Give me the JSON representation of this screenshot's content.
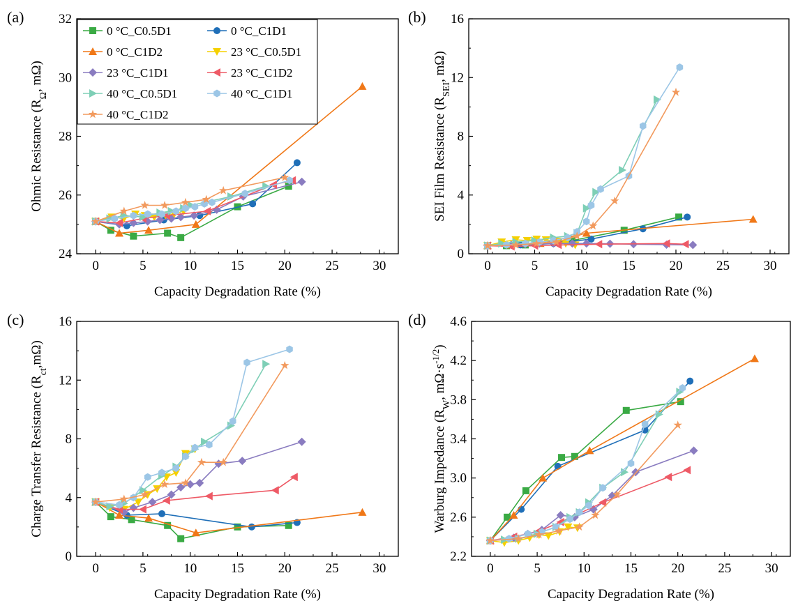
{
  "colors": {
    "0C_C0.5D1": "#3aaa44",
    "0C_C1D1": "#1f6fb8",
    "0C_C1D2": "#f07818",
    "23C_C0.5D1": "#f5d000",
    "23C_C1D1": "#8a7cc0",
    "23C_C1D2": "#ee5a66",
    "40C_C0.5D1": "#7ecfb6",
    "40C_C1D1": "#9cc6e6",
    "40C_C1D2": "#f29a5e"
  },
  "legend": [
    {
      "key": "0C_C0.5D1",
      "label": "0 °C_C0.5D1",
      "marker": "square"
    },
    {
      "key": "0C_C1D1",
      "label": "0 °C_C1D1",
      "marker": "circle"
    },
    {
      "key": "0C_C1D2",
      "label": "0 °C_C1D2",
      "marker": "tri-up"
    },
    {
      "key": "23C_C0.5D1",
      "label": "23 °C_C0.5D1",
      "marker": "tri-down"
    },
    {
      "key": "23C_C1D1",
      "label": "23 °C_C1D1",
      "marker": "diamond"
    },
    {
      "key": "23C_C1D2",
      "label": "23 °C_C1D2",
      "marker": "tri-left"
    },
    {
      "key": "40C_C0.5D1",
      "label": "40 °C_C0.5D1",
      "marker": "tri-right"
    },
    {
      "key": "40C_C1D1",
      "label": "40 °C_C1D1",
      "marker": "hexagon"
    },
    {
      "key": "40C_C1D2",
      "label": "40 °C_C1D2",
      "marker": "star"
    }
  ],
  "chart_data": [
    {
      "panel": "(a)",
      "type": "line",
      "xlabel": "Capacity Degradation Rate (%)",
      "ylabel": "Ohmic Resistance (R_Ω, mΩ)",
      "xlim": [
        -2,
        32
      ],
      "ylim": [
        24,
        32
      ],
      "xticks": [
        0,
        5,
        10,
        15,
        20,
        25,
        30
      ],
      "yticks": [
        24,
        26,
        28,
        30,
        32
      ],
      "legend_position": "top-left",
      "series": [
        {
          "key": "0C_C0.5D1",
          "x": [
            0,
            1.6,
            4,
            7.6,
            9,
            15,
            20.4
          ],
          "y": [
            25.1,
            24.8,
            24.6,
            24.7,
            24.55,
            25.6,
            26.3
          ]
        },
        {
          "key": "0C_C1D1",
          "x": [
            0,
            3.3,
            7.2,
            11,
            16.6,
            21.3
          ],
          "y": [
            25.1,
            24.95,
            25.15,
            25.3,
            25.7,
            27.1
          ]
        },
        {
          "key": "0C_C1D2",
          "x": [
            0,
            2.5,
            5.6,
            10.6,
            28.2
          ],
          "y": [
            25.1,
            24.7,
            24.8,
            25.0,
            29.7
          ]
        },
        {
          "key": "23C_C0.5D1",
          "x": [
            0,
            1.7,
            3,
            4.2,
            5.2,
            6.2,
            7.4,
            8.3,
            9.3
          ],
          "y": [
            25.1,
            25.25,
            25.2,
            25.35,
            25.3,
            25.25,
            25.3,
            25.35,
            25.45
          ]
        },
        {
          "key": "23C_C1D1",
          "x": [
            0,
            2.5,
            4,
            5.5,
            6.8,
            8,
            9,
            10.4,
            12.8,
            15.6,
            21.8
          ],
          "y": [
            25.1,
            25.0,
            25.05,
            25.1,
            25.15,
            25.2,
            25.25,
            25.3,
            25.5,
            25.95,
            26.45
          ]
        },
        {
          "key": "23C_C1D2",
          "x": [
            0,
            2.5,
            5,
            7.5,
            11.8,
            18.8,
            20.8
          ],
          "y": [
            25.1,
            25.05,
            25.2,
            25.3,
            25.45,
            26.35,
            26.5
          ]
        },
        {
          "key": "40C_C0.5D1",
          "x": [
            0,
            1.5,
            3,
            5,
            6.8,
            8,
            9.3,
            10.1,
            14.3,
            18
          ],
          "y": [
            25.1,
            25.2,
            25.3,
            25.25,
            25.4,
            25.45,
            25.55,
            25.65,
            25.95,
            26.3
          ]
        },
        {
          "key": "40C_C1D1",
          "x": [
            0,
            2,
            4,
            5.5,
            7,
            8.5,
            9.5,
            10.5,
            11.5,
            12.3,
            15.8,
            20.5
          ],
          "y": [
            25.1,
            25.2,
            25.3,
            25.35,
            25.35,
            25.45,
            25.55,
            25.6,
            25.7,
            25.75,
            26.05,
            26.5
          ]
        },
        {
          "key": "40C_C1D2",
          "x": [
            0,
            3,
            5.2,
            7.3,
            9.5,
            11.7,
            13.5,
            20
          ],
          "y": [
            25.1,
            25.45,
            25.65,
            25.65,
            25.75,
            25.85,
            26.15,
            26.6
          ]
        }
      ]
    },
    {
      "panel": "(b)",
      "type": "line",
      "xlabel": "Capacity Degradation Rate (%)",
      "ylabel": "SEI Film Resistance (R_SEI, mΩ)",
      "xlim": [
        -2,
        32
      ],
      "ylim": [
        0,
        16
      ],
      "xticks": [
        0,
        5,
        10,
        15,
        20,
        25,
        30
      ],
      "yticks": [
        0,
        4,
        8,
        12,
        16
      ],
      "series": [
        {
          "key": "0C_C0.5D1",
          "x": [
            0,
            2,
            4,
            7.5,
            9,
            14.5,
            20.3
          ],
          "y": [
            0.55,
            0.55,
            0.6,
            0.8,
            0.9,
            1.6,
            2.5
          ]
        },
        {
          "key": "0C_C1D1",
          "x": [
            0,
            3.5,
            7,
            11,
            16.5,
            21.2
          ],
          "y": [
            0.55,
            0.6,
            0.7,
            1.0,
            1.7,
            2.5
          ]
        },
        {
          "key": "0C_C1D2",
          "x": [
            0,
            2.5,
            5.6,
            10.5,
            28.2
          ],
          "y": [
            0.55,
            0.6,
            0.7,
            1.4,
            2.35
          ]
        },
        {
          "key": "23C_C0.5D1",
          "x": [
            0,
            1.5,
            3,
            4.2,
            5.2,
            6.2,
            7.4,
            8.3,
            9.3
          ],
          "y": [
            0.55,
            0.8,
            0.95,
            0.9,
            1.0,
            0.95,
            0.85,
            0.7,
            0.6
          ]
        },
        {
          "key": "23C_C1D1",
          "x": [
            0,
            2.5,
            4,
            5.5,
            7,
            9,
            10.5,
            13,
            15.5,
            19,
            21.8
          ],
          "y": [
            0.55,
            0.6,
            0.65,
            0.7,
            0.7,
            0.7,
            0.7,
            0.68,
            0.65,
            0.62,
            0.6
          ]
        },
        {
          "key": "23C_C1D2",
          "x": [
            0,
            2.5,
            5,
            7.5,
            11.8,
            19,
            21
          ],
          "y": [
            0.55,
            0.5,
            0.55,
            0.6,
            0.65,
            0.7,
            0.65
          ]
        },
        {
          "key": "40C_C0.5D1",
          "x": [
            0,
            1.5,
            3,
            5,
            7,
            8.5,
            9.5,
            10.5,
            11.5,
            14.3,
            18
          ],
          "y": [
            0.55,
            0.7,
            0.8,
            0.9,
            1.1,
            1.2,
            1.4,
            3.1,
            4.2,
            5.7,
            10.5
          ]
        },
        {
          "key": "40C_C1D1",
          "x": [
            0,
            2,
            4,
            5.5,
            7,
            8.5,
            9.5,
            10.5,
            11,
            12,
            15,
            16.5,
            20.4
          ],
          "y": [
            0.55,
            0.6,
            0.7,
            0.8,
            0.9,
            1.1,
            1.5,
            2.2,
            3.3,
            4.4,
            5.3,
            8.7,
            12.7
          ]
        },
        {
          "key": "40C_C1D2",
          "x": [
            0,
            3,
            5.2,
            7.3,
            9.5,
            11.2,
            13.5,
            20
          ],
          "y": [
            0.55,
            0.6,
            0.7,
            0.8,
            1.2,
            1.9,
            3.6,
            11.0
          ]
        }
      ]
    },
    {
      "panel": "(c)",
      "type": "line",
      "xlabel": "Capacity Degradation Rate (%)",
      "ylabel": "Charge Transfer Resistance (R_ct, mΩ)",
      "xlim": [
        -2,
        32
      ],
      "ylim": [
        0,
        16
      ],
      "xticks": [
        0,
        5,
        10,
        15,
        20,
        25,
        30
      ],
      "yticks": [
        0,
        4,
        8,
        12,
        16
      ],
      "series": [
        {
          "key": "0C_C0.5D1",
          "x": [
            0,
            1.6,
            3.8,
            7.6,
            9,
            15,
            20.4
          ],
          "y": [
            3.7,
            2.7,
            2.5,
            2.1,
            1.2,
            2.0,
            2.1
          ]
        },
        {
          "key": "0C_C1D1",
          "x": [
            0,
            3.3,
            7,
            16.5,
            21.3
          ],
          "y": [
            3.7,
            2.8,
            2.9,
            2.0,
            2.3
          ]
        },
        {
          "key": "0C_C1D2",
          "x": [
            0,
            2.5,
            5.6,
            10.6,
            28.2
          ],
          "y": [
            3.7,
            2.8,
            2.6,
            1.6,
            3.0
          ]
        },
        {
          "key": "23C_C0.5D1",
          "x": [
            0,
            1.5,
            3,
            4.5,
            5.5,
            6.5,
            7.5,
            8.5,
            9.5,
            10.5
          ],
          "y": [
            3.7,
            3.3,
            3.2,
            3.7,
            4.2,
            4.6,
            5.4,
            5.7,
            7.0,
            7.3
          ]
        },
        {
          "key": "23C_C1D1",
          "x": [
            0,
            3,
            4,
            6,
            8,
            9,
            10,
            11,
            13,
            15.5,
            21.8
          ],
          "y": [
            3.7,
            3.0,
            3.3,
            3.7,
            4.2,
            4.7,
            4.9,
            5.0,
            6.3,
            6.5,
            7.8
          ]
        },
        {
          "key": "23C_C1D2",
          "x": [
            0,
            2.5,
            5,
            7.5,
            12,
            19,
            21
          ],
          "y": [
            3.7,
            3.2,
            3.2,
            3.8,
            4.1,
            4.5,
            5.4
          ]
        },
        {
          "key": "40C_C0.5D1",
          "x": [
            0,
            1.5,
            3,
            5,
            7,
            8.5,
            9.5,
            10.5,
            11.5,
            14.3,
            18
          ],
          "y": [
            3.7,
            3.4,
            3.6,
            4.5,
            5.5,
            6.1,
            6.8,
            7.3,
            7.8,
            8.9,
            13.1
          ]
        },
        {
          "key": "40C_C1D1",
          "x": [
            0,
            2.5,
            4,
            5.5,
            7,
            8.5,
            9.5,
            10.5,
            12,
            14.5,
            16,
            20.5
          ],
          "y": [
            3.7,
            3.5,
            4.0,
            5.4,
            5.7,
            6.0,
            6.8,
            7.4,
            7.6,
            9.2,
            13.2,
            14.1
          ]
        },
        {
          "key": "40C_C1D2",
          "x": [
            0,
            3,
            5.2,
            7.3,
            9.5,
            11.2,
            13.5,
            20
          ],
          "y": [
            3.7,
            3.9,
            4.2,
            4.9,
            5.0,
            6.4,
            6.4,
            13.0
          ]
        }
      ]
    },
    {
      "panel": "(d)",
      "type": "line",
      "xlabel": "Capacity Degradation Rate (%)",
      "ylabel": "Warburg Impedance (R_W, mΩ·s^-1/2)",
      "xlim": [
        -2,
        32
      ],
      "ylim": [
        2.2,
        4.6
      ],
      "xticks": [
        0,
        5,
        10,
        15,
        20,
        25,
        30
      ],
      "yticks": [
        2.2,
        2.6,
        3.0,
        3.4,
        3.8,
        4.2,
        4.6
      ],
      "series": [
        {
          "key": "0C_C0.5D1",
          "x": [
            0,
            1.8,
            3.8,
            7.6,
            9,
            14.5,
            20.3
          ],
          "y": [
            2.36,
            2.6,
            2.87,
            3.21,
            3.22,
            3.69,
            3.78
          ]
        },
        {
          "key": "0C_C1D1",
          "x": [
            0,
            3.3,
            7.2,
            16.5,
            21.3
          ],
          "y": [
            2.36,
            2.68,
            3.12,
            3.49,
            3.99
          ]
        },
        {
          "key": "0C_C1D2",
          "x": [
            0,
            2.5,
            5.6,
            10.6,
            28.2
          ],
          "y": [
            2.36,
            2.62,
            3.0,
            3.28,
            4.22
          ]
        },
        {
          "key": "23C_C0.5D1",
          "x": [
            0,
            1.5,
            3,
            4.2,
            5.2,
            6.2,
            7.4,
            8.3,
            9.3
          ],
          "y": [
            2.36,
            2.34,
            2.36,
            2.39,
            2.42,
            2.41,
            2.45,
            2.5,
            2.49
          ]
        },
        {
          "key": "23C_C1D1",
          "x": [
            0,
            2.5,
            4,
            5.5,
            7.5,
            9,
            11,
            13,
            15.5,
            21.7
          ],
          "y": [
            2.36,
            2.39,
            2.43,
            2.47,
            2.62,
            2.6,
            2.68,
            2.82,
            3.06,
            3.28
          ]
        },
        {
          "key": "23C_C1D2",
          "x": [
            0,
            2.5,
            5,
            7.5,
            12,
            19,
            21
          ],
          "y": [
            2.36,
            2.4,
            2.45,
            2.55,
            2.75,
            3.01,
            3.08
          ]
        },
        {
          "key": "40C_C0.5D1",
          "x": [
            0,
            1.5,
            3,
            5,
            7,
            8.5,
            9.5,
            10.5,
            12,
            14.3,
            18,
            20.2
          ],
          "y": [
            2.36,
            2.37,
            2.38,
            2.43,
            2.5,
            2.6,
            2.65,
            2.75,
            2.9,
            3.06,
            3.65,
            3.88
          ]
        },
        {
          "key": "40C_C1D1",
          "x": [
            0,
            2,
            4,
            5.5,
            7,
            8.5,
            9.5,
            10.5,
            12,
            15,
            16.5,
            20.5
          ],
          "y": [
            2.36,
            2.38,
            2.43,
            2.45,
            2.5,
            2.58,
            2.65,
            2.72,
            2.9,
            3.15,
            3.55,
            3.92
          ]
        },
        {
          "key": "40C_C1D2",
          "x": [
            0,
            3,
            5.2,
            7.3,
            9.5,
            11.2,
            13.5,
            20
          ],
          "y": [
            2.36,
            2.38,
            2.42,
            2.46,
            2.5,
            2.62,
            2.83,
            3.54
          ]
        }
      ]
    }
  ]
}
